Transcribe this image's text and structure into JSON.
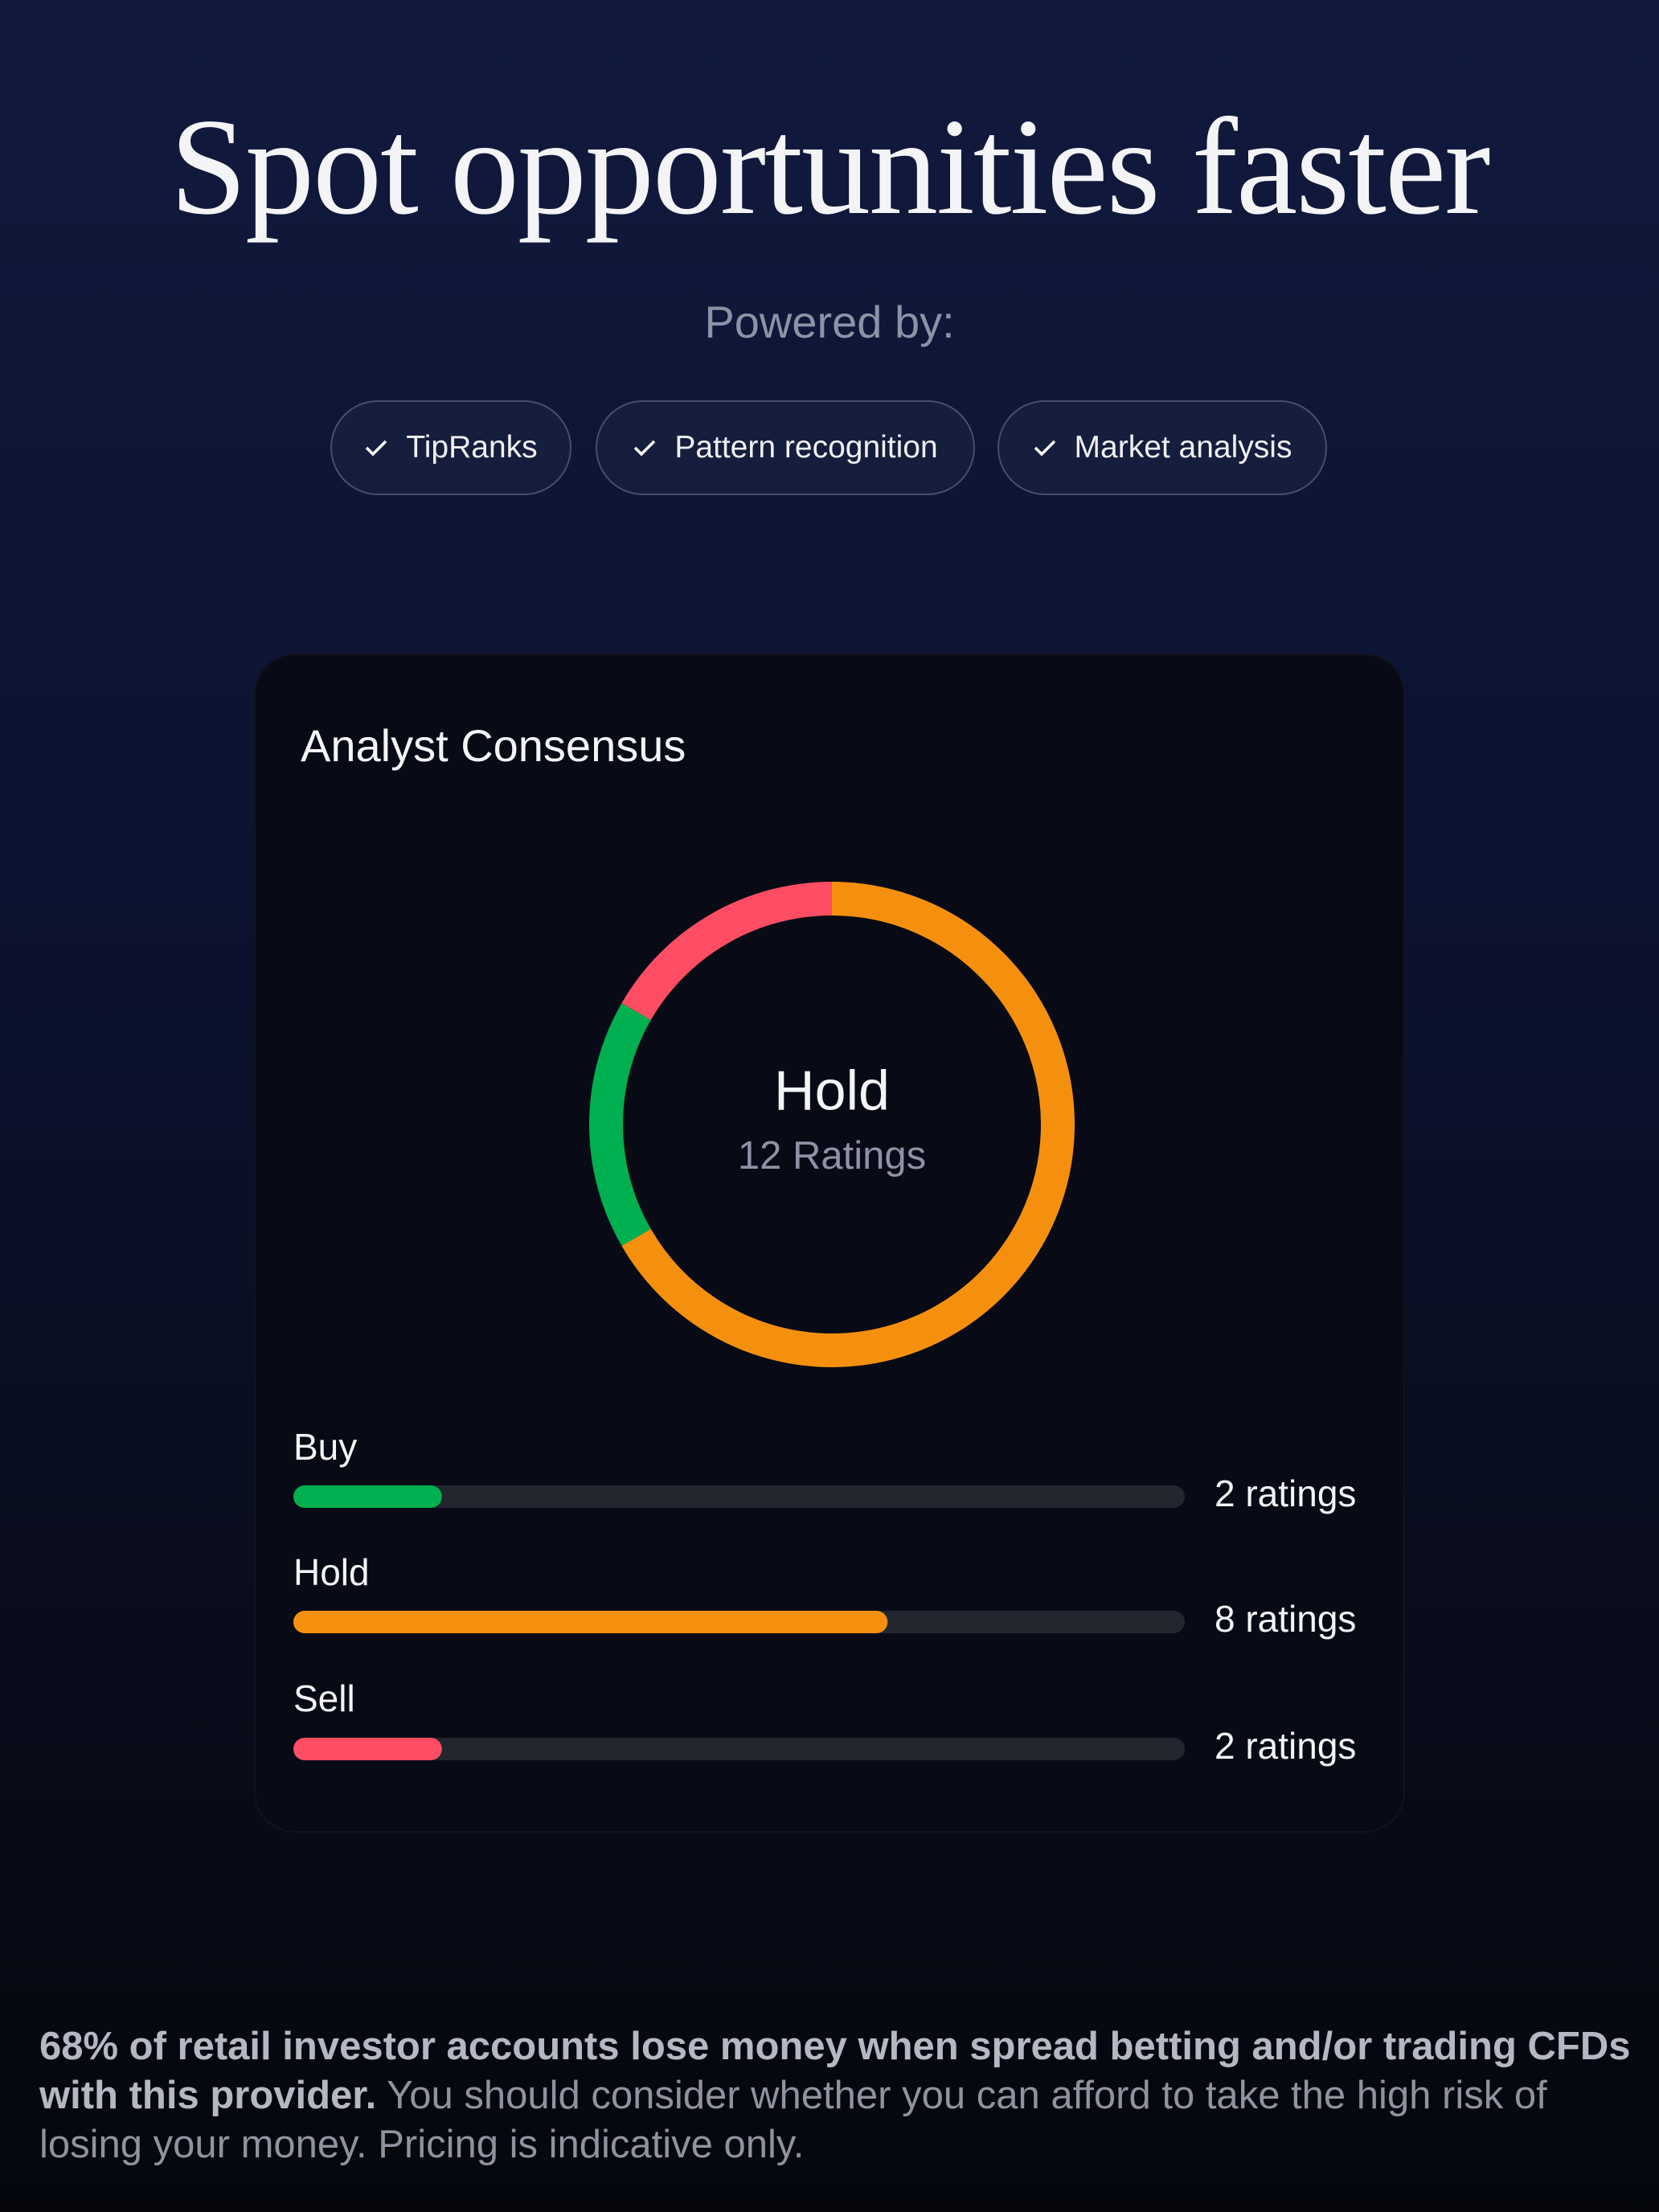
{
  "header": {
    "title": "Spot opportunities faster",
    "subtitle": "Powered by:",
    "pills": [
      "TipRanks",
      "Pattern recognition",
      "Market analysis"
    ]
  },
  "card": {
    "title": "Analyst Consensus",
    "consensus": "Hold",
    "total_label": "12 Ratings",
    "ratings": [
      {
        "name": "Buy",
        "value": 2,
        "value_label": "2 ratings",
        "color": "#00b050"
      },
      {
        "name": "Hold",
        "value": 8,
        "value_label": "8 ratings",
        "color": "#f5900f"
      },
      {
        "name": "Sell",
        "value": 2,
        "value_label": "2 ratings",
        "color": "#ff4d63"
      }
    ]
  },
  "disclaimer": {
    "bold": "68% of retail investor accounts lose money when spread betting and/or trading CFDs with this provider.",
    "text": "You should consider whether you can afford to take the high risk of losing your money. Pricing is indicative only."
  }
}
